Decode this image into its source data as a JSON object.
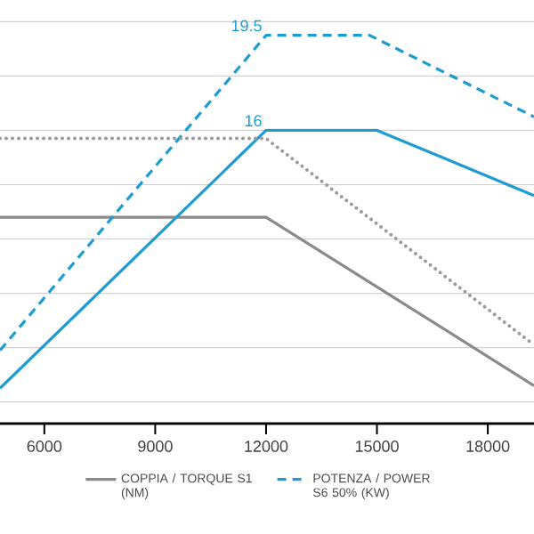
{
  "chart_data": {
    "type": "line",
    "x": [
      4800,
      12000,
      15000,
      19250
    ],
    "xlim": [
      4800,
      19250
    ],
    "xticks": [
      6000,
      9000,
      12000,
      15000,
      18000
    ],
    "tick_labels": "x",
    "grid": "y",
    "legend": "bottom",
    "series": [
      {
        "name": "COPPIA / TORQUE S1 (NM)",
        "color": "#8a8a8a",
        "line_style": "solid",
        "x": [
          4800,
          12000,
          19250
        ],
        "values": [
          12.8,
          12.8,
          6.6
        ]
      },
      {
        "name": "POTENZA / POWER S6 50% (KW)",
        "color": "#1e9bd0",
        "line_style": "dashed",
        "x": [
          4800,
          12000,
          14800,
          19250
        ],
        "values": [
          7.9,
          19.5,
          19.5,
          16.5
        ],
        "value_labels": [
          null,
          "19.5",
          null,
          null
        ]
      },
      {
        "color": "#1e9bd0",
        "line_style": "solid",
        "values": [
          6.5,
          16,
          16,
          13.6
        ],
        "value_labels": [
          null,
          "16",
          null,
          null
        ]
      },
      {
        "color": "#9a9a9a",
        "line_style": "dotted",
        "x": [
          4800,
          12000,
          19250
        ],
        "values": [
          15.7,
          15.7,
          8.1
        ]
      }
    ]
  }
}
